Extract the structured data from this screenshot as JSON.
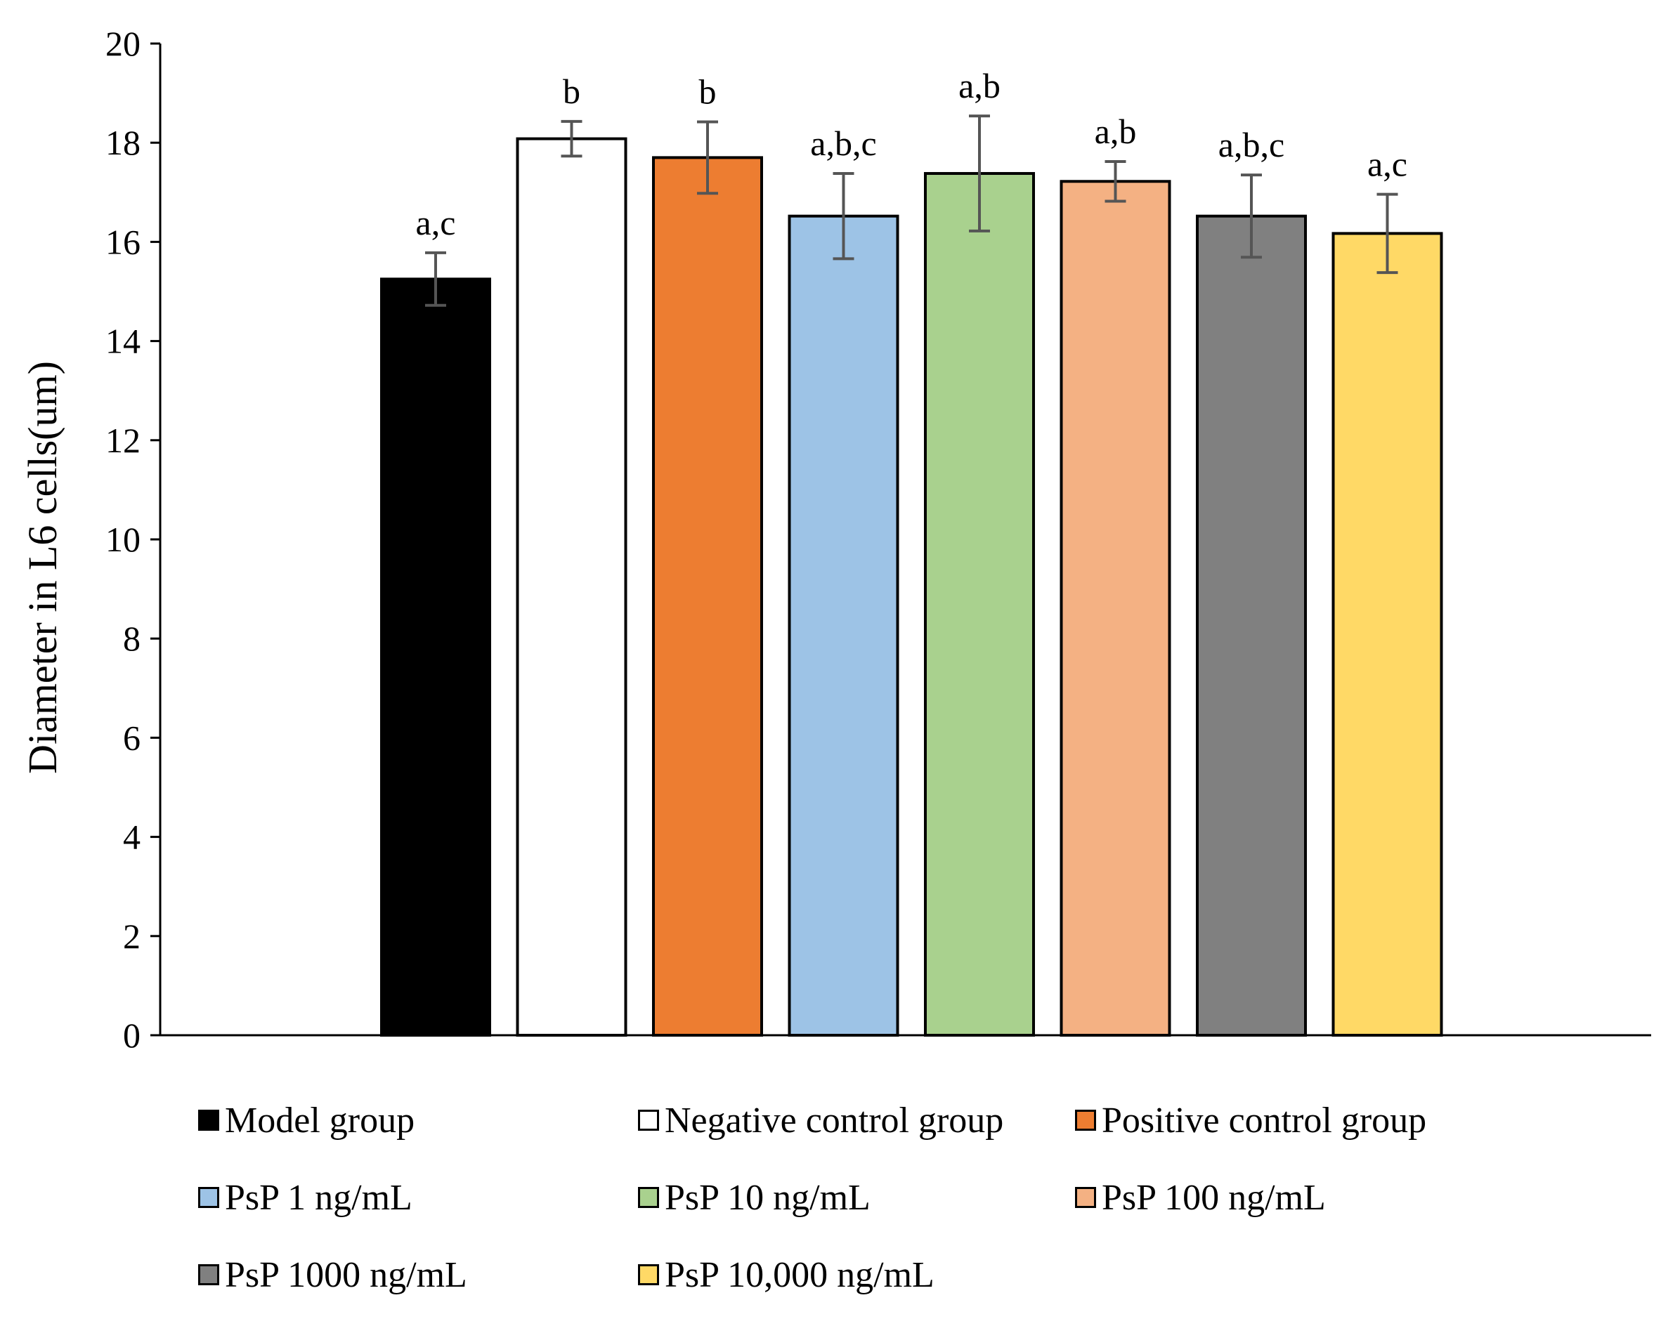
{
  "chart_data": {
    "type": "bar",
    "title": "",
    "xlabel": "",
    "ylabel": "Diameter in L6 cells(um)",
    "ylim": [
      0,
      20
    ],
    "yticks": [
      "0",
      "2",
      "4",
      "6",
      "8",
      "10",
      "12",
      "14",
      "16",
      "18",
      "20"
    ],
    "grid": false,
    "legend_position": "bottom",
    "categories": [
      "Model group",
      "Negative control group",
      "Positive control group",
      "PsP 1 ng/mL",
      "PsP 10 ng/mL",
      "PsP 100 ng/mL",
      "PsP 1000 ng/mL",
      "PsP 10,000 ng/mL"
    ],
    "values": [
      15.25,
      18.08,
      17.7,
      16.52,
      17.38,
      17.22,
      16.52,
      16.17
    ],
    "errors": [
      0.53,
      0.35,
      0.72,
      0.86,
      1.16,
      0.4,
      0.83,
      0.79
    ],
    "significance": [
      "a,c",
      "b",
      "b",
      "a,b,c",
      "a,b",
      "a,b",
      "a,b,c",
      "a,c"
    ],
    "colors": [
      "#000000",
      "#ffffff",
      "#ed7d31",
      "#9dc3e6",
      "#a9d18e",
      "#f4b183",
      "#808080",
      "#ffd966"
    ]
  }
}
